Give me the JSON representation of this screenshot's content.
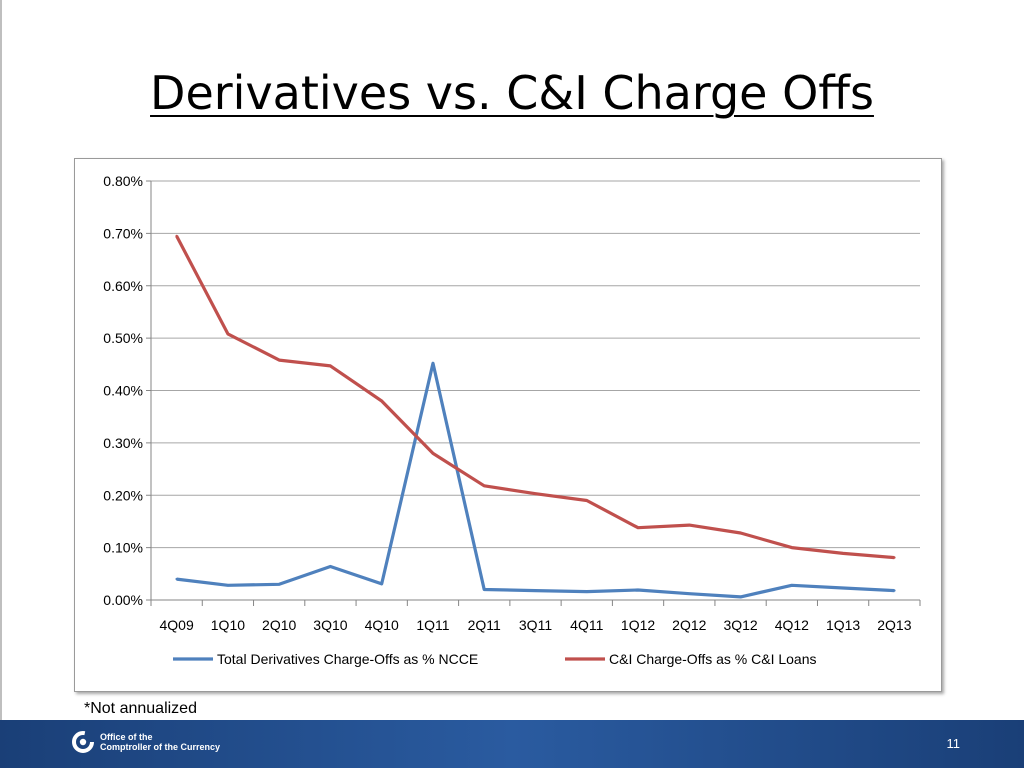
{
  "slide": {
    "title": "Derivatives vs. C&I Charge Offs",
    "footnote": "*Not annualized",
    "page_number": "11",
    "logo_line1": "Office of the",
    "logo_line2": "Comptroller of the Currency"
  },
  "chart_data": {
    "type": "line",
    "categories": [
      "4Q09",
      "1Q10",
      "2Q10",
      "3Q10",
      "4Q10",
      "1Q11",
      "2Q11",
      "3Q11",
      "4Q11",
      "1Q12",
      "2Q12",
      "3Q12",
      "4Q12",
      "1Q13",
      "2Q13"
    ],
    "series": [
      {
        "name": "Total Derivatives Charge-Offs as % NCCE",
        "color": "#4f81bd",
        "values": [
          0.04,
          0.028,
          0.03,
          0.064,
          0.031,
          0.452,
          0.02,
          0.018,
          0.016,
          0.019,
          0.012,
          0.006,
          0.028,
          0.023,
          0.018
        ]
      },
      {
        "name": "C&I Charge-Offs as % C&I Loans",
        "color": "#c0504d",
        "values": [
          0.695,
          0.508,
          0.458,
          0.447,
          0.38,
          0.28,
          0.218,
          0.203,
          0.19,
          0.138,
          0.143,
          0.128,
          0.1,
          0.089,
          0.081
        ]
      }
    ],
    "ylim": [
      0,
      0.8
    ],
    "yticks": [
      "0.00%",
      "0.10%",
      "0.20%",
      "0.30%",
      "0.40%",
      "0.50%",
      "0.60%",
      "0.70%",
      "0.80%"
    ],
    "ytick_values": [
      0,
      0.1,
      0.2,
      0.3,
      0.4,
      0.5,
      0.6,
      0.7,
      0.8
    ],
    "grid": true,
    "legend_position": "bottom",
    "xlabel": "",
    "ylabel": ""
  }
}
